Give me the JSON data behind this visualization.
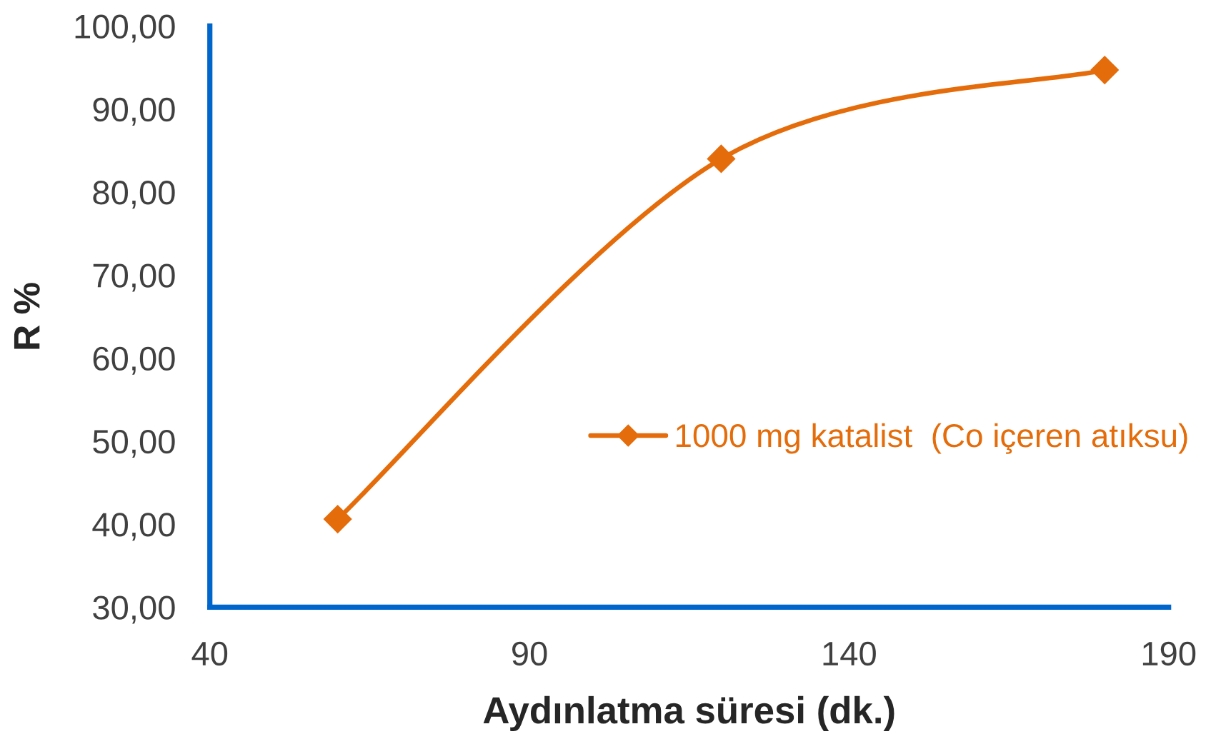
{
  "chart_data": {
    "type": "line",
    "xlabel": "Aydınlatma süresi (dk.)",
    "ylabel": "R %",
    "x": [
      60,
      120,
      180
    ],
    "series": [
      {
        "name": "1000 mg katalist  (Co içeren atıksu)",
        "color": "#e46c0a",
        "values": [
          40.6,
          84.0,
          94.7
        ]
      }
    ],
    "xlim": [
      40,
      190
    ],
    "xticks": [
      40,
      90,
      140,
      190
    ],
    "ylim": [
      30,
      100
    ],
    "yticks": [
      {
        "value": 30,
        "label": "30,00"
      },
      {
        "value": 40,
        "label": "40,00"
      },
      {
        "value": 50,
        "label": "50,00"
      },
      {
        "value": 60,
        "label": "60,00"
      },
      {
        "value": 70,
        "label": "70,00"
      },
      {
        "value": 80,
        "label": "80,00"
      },
      {
        "value": 90,
        "label": "90,00"
      },
      {
        "value": 100,
        "label": "100,00"
      }
    ],
    "marker": "diamond",
    "line_style": "solid",
    "grid": false,
    "legend": "right"
  }
}
